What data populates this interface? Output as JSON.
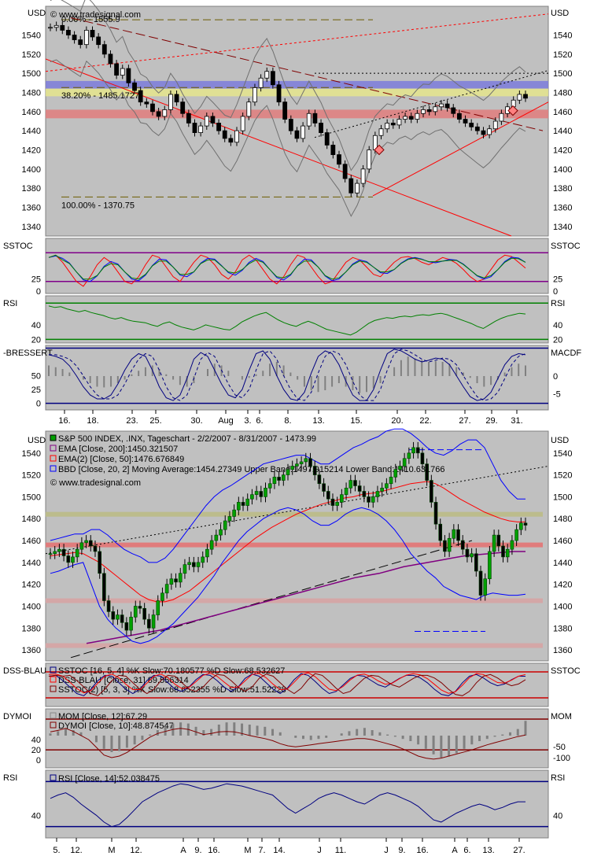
{
  "chart_data": [
    {
      "type": "line",
      "unit": "USD",
      "watermark": "© www.tradesignal.com",
      "ylim": [
        1330,
        1570
      ],
      "y_ticks": [
        1340,
        1360,
        1380,
        1400,
        1420,
        1440,
        1460,
        1480,
        1500,
        1520,
        1540
      ],
      "x_ticks": [
        "16.",
        "18.",
        "23.",
        "25.",
        "30.",
        "Aug",
        "3.",
        "6.",
        "8.",
        "13.",
        "15.",
        "20.",
        "22.",
        "27.",
        "29.",
        "31."
      ],
      "fib_levels": [
        {
          "label": "0.00% - 1555.9",
          "value": 1555.9
        },
        {
          "label": "38.20% - 1485.1727",
          "value": 1485.1727
        },
        {
          "label": "100.00% - 1370.75",
          "value": 1370.75
        }
      ],
      "zones": [
        {
          "color": "#7b7bdb",
          "from": 1484,
          "to": 1492
        },
        {
          "color": "#e5e58c",
          "from": 1476,
          "to": 1484
        },
        {
          "color": "#e07c7c",
          "from": 1453,
          "to": 1462
        }
      ],
      "close": [
        1548,
        1550,
        1545,
        1540,
        1535,
        1530,
        1545,
        1538,
        1530,
        1520,
        1510,
        1498,
        1505,
        1490,
        1482,
        1470,
        1468,
        1460,
        1455,
        1462,
        1478,
        1470,
        1458,
        1448,
        1438,
        1445,
        1455,
        1448,
        1440,
        1432,
        1428,
        1440,
        1455,
        1470,
        1485,
        1495,
        1502,
        1488,
        1470,
        1452,
        1440,
        1432,
        1445,
        1458,
        1448,
        1438,
        1425,
        1415,
        1405,
        1390,
        1375,
        1385,
        1400,
        1420,
        1435,
        1442,
        1448,
        1446,
        1452,
        1455,
        1452,
        1458,
        1462,
        1460,
        1465,
        1468,
        1464,
        1458,
        1452,
        1448,
        1444,
        1440,
        1436,
        1442,
        1450,
        1458,
        1465,
        1472,
        1478,
        1474
      ]
    },
    {
      "type": "line",
      "name": "SSTOC",
      "y_ticks": [
        0,
        25
      ],
      "levels": [
        20,
        80
      ],
      "k": [
        70,
        75,
        60,
        40,
        20,
        10,
        30,
        55,
        70,
        60,
        40,
        20,
        15,
        30,
        55,
        75,
        70,
        50,
        30,
        20,
        40,
        60,
        75,
        70,
        55,
        35,
        25,
        40,
        65,
        75,
        65,
        45,
        25,
        15,
        30,
        55,
        75,
        70,
        50,
        30,
        15,
        20,
        40,
        60,
        70,
        65,
        50,
        35,
        30,
        45,
        60,
        70,
        72,
        68,
        60,
        55,
        62,
        70,
        66,
        58,
        45,
        30,
        20,
        25,
        45,
        65,
        75,
        72,
        60,
        48
      ]
    },
    {
      "type": "line",
      "name": "RSI",
      "y_ticks": [
        20,
        40
      ],
      "levels": [
        20,
        70
      ],
      "values": [
        66,
        64,
        65,
        62,
        60,
        58,
        60,
        57,
        55,
        53,
        50,
        48,
        50,
        47,
        45,
        44,
        43,
        40,
        38,
        42,
        44,
        40,
        37,
        35,
        33,
        36,
        40,
        38,
        36,
        34,
        33,
        38,
        44,
        48,
        52,
        55,
        57,
        52,
        47,
        43,
        40,
        38,
        42,
        45,
        42,
        38,
        34,
        32,
        30,
        28,
        26,
        30,
        36,
        42,
        46,
        48,
        50,
        49,
        51,
        52,
        51,
        53,
        54,
        53,
        55,
        56,
        54,
        51,
        48,
        45,
        42,
        38,
        35,
        40,
        45,
        49,
        52,
        54,
        56,
        55
      ]
    },
    {
      "type": "line",
      "name": "-BRESSERT",
      "name_right": "MACDF",
      "y_ticks": [
        0,
        25,
        50
      ],
      "y_ticks_right": [
        0,
        -5
      ],
      "bressert": [
        88,
        85,
        80,
        68,
        50,
        30,
        15,
        8,
        8,
        15,
        35,
        60,
        80,
        90,
        85,
        60,
        30,
        10,
        5,
        15,
        45,
        80,
        92,
        85,
        60,
        35,
        15,
        10,
        25,
        60,
        90,
        95,
        80,
        50,
        25,
        8,
        5,
        20,
        55,
        85,
        95,
        90,
        70,
        40,
        15,
        5,
        5,
        25,
        60,
        90,
        98,
        95,
        88,
        80,
        75,
        78,
        82,
        80,
        70,
        50,
        30,
        12,
        5,
        8,
        20,
        45,
        70,
        85,
        90,
        88
      ],
      "macd_hist": [
        3,
        2.5,
        2,
        1,
        0,
        -1,
        -2,
        -3,
        -3.2,
        -3,
        -2,
        -1,
        0.5,
        1.5,
        2.5,
        3,
        2,
        0.5,
        -1,
        -2.5,
        -3,
        -2,
        0,
        2,
        3.5,
        3,
        1.5,
        0,
        -1,
        -0.5,
        0.5,
        1.5,
        3.5,
        4,
        3,
        1,
        -1,
        -3,
        -4,
        -4.5,
        -4,
        -3,
        -2,
        -3,
        -4,
        -4.8,
        -4.5,
        -3.5,
        -2,
        0,
        2.5,
        4.5,
        5.5,
        5,
        4.5,
        4,
        4.2,
        4,
        3.5,
        2.5,
        1,
        -0.5,
        -2,
        -3,
        -2.5,
        -1,
        1,
        2.5,
        3.5,
        3
      ]
    },
    {
      "type": "line",
      "unit": "USD",
      "watermark": "© www.tradesignal.com",
      "ylim": [
        1350,
        1560
      ],
      "y_ticks": [
        1360,
        1380,
        1400,
        1420,
        1440,
        1460,
        1480,
        1500,
        1520,
        1540
      ],
      "x_ticks": [
        "5.",
        "12.",
        "M",
        "12.",
        "A",
        "9.",
        "16.",
        "M",
        "7.",
        "14.",
        "J",
        "11.",
        "J",
        "9.",
        "16.",
        "A",
        "6.",
        "13.",
        "27."
      ],
      "legend": [
        {
          "text": "S&P 500 INDEX, .INX, Tageschart - 2/2/2007 - 8/31/2007 - 1473.99",
          "color": "#000000"
        },
        {
          "text": "EMA [Close, 200]:1450.321507",
          "color": "#800080"
        },
        {
          "text": "EMA(2) [Close, 50]:1476.676849",
          "color": "#ff0000"
        },
        {
          "text": "BBD [Close, 20, 2] Moving Average:1454.27349 Upper Band:1497.915214 Lower Band:1410.631766",
          "color": "#0000ff"
        }
      ],
      "zones": [
        {
          "color": "#e07c7c",
          "value": 1456
        },
        {
          "color": "#d4a7a7",
          "value": 1405
        },
        {
          "color": "#d4a7a7",
          "value": 1364
        },
        {
          "color": "#bcbc8c",
          "value": 1484
        }
      ],
      "close": [
        1448,
        1450,
        1452,
        1446,
        1440,
        1445,
        1452,
        1458,
        1460,
        1455,
        1450,
        1430,
        1405,
        1395,
        1388,
        1392,
        1385,
        1378,
        1390,
        1400,
        1398,
        1388,
        1380,
        1392,
        1405,
        1412,
        1420,
        1425,
        1422,
        1430,
        1438,
        1440,
        1436,
        1440,
        1445,
        1452,
        1460,
        1465,
        1470,
        1478,
        1482,
        1488,
        1495,
        1492,
        1498,
        1502,
        1505,
        1500,
        1508,
        1512,
        1518,
        1515,
        1520,
        1525,
        1528,
        1530,
        1532,
        1535,
        1528,
        1520,
        1512,
        1505,
        1498,
        1492,
        1495,
        1502,
        1508,
        1515,
        1510,
        1505,
        1500,
        1495,
        1500,
        1505,
        1508,
        1512,
        1518,
        1525,
        1528,
        1535,
        1540,
        1545,
        1540,
        1530,
        1515,
        1495,
        1475,
        1460,
        1450,
        1462,
        1470,
        1460,
        1452,
        1445,
        1448,
        1432,
        1410,
        1425,
        1450,
        1465,
        1455,
        1445,
        1452,
        1460,
        1470,
        1476,
        1474
      ],
      "ema200": [
        1366,
        1368,
        1370,
        1372,
        1374,
        1376,
        1378,
        1381,
        1384,
        1387,
        1390,
        1393,
        1396,
        1399,
        1402,
        1405,
        1408,
        1411,
        1414,
        1417,
        1420,
        1423,
        1426,
        1428,
        1430,
        1433,
        1436,
        1438,
        1440,
        1442,
        1444,
        1446,
        1447,
        1448,
        1449,
        1450,
        1450
      ],
      "ema50": [
        1446,
        1447,
        1448,
        1449,
        1448,
        1444,
        1440,
        1434,
        1428,
        1422,
        1416,
        1410,
        1406,
        1404,
        1404,
        1406,
        1410,
        1414,
        1420,
        1426,
        1432,
        1438,
        1444,
        1450,
        1456,
        1462,
        1467,
        1472,
        1476,
        1480,
        1484,
        1487,
        1490,
        1493,
        1495,
        1497,
        1499,
        1500,
        1502,
        1503,
        1504,
        1506,
        1508,
        1510,
        1512,
        1513,
        1514,
        1512,
        1508,
        1503,
        1498,
        1494,
        1490,
        1486,
        1483,
        1480,
        1478,
        1477,
        1477
      ],
      "bb_upper": [
        1460,
        1462,
        1464,
        1466,
        1466,
        1470,
        1470,
        1465,
        1458,
        1452,
        1448,
        1445,
        1440,
        1440,
        1444,
        1452,
        1462,
        1472,
        1482,
        1492,
        1500,
        1506,
        1510,
        1515,
        1520,
        1525,
        1530,
        1532,
        1534,
        1536,
        1538,
        1538,
        1534,
        1530,
        1530,
        1535,
        1540,
        1545,
        1548,
        1552,
        1555,
        1560,
        1562,
        1562,
        1558,
        1552,
        1545,
        1540,
        1538,
        1542,
        1548,
        1552,
        1552,
        1545,
        1530,
        1515,
        1505,
        1498,
        1498
      ],
      "bb_lower": [
        1430,
        1432,
        1435,
        1438,
        1440,
        1420,
        1400,
        1388,
        1380,
        1374,
        1368,
        1366,
        1368,
        1372,
        1378,
        1384,
        1392,
        1400,
        1408,
        1418,
        1428,
        1440,
        1450,
        1460,
        1468,
        1474,
        1480,
        1484,
        1488,
        1490,
        1488,
        1484,
        1478,
        1474,
        1474,
        1478,
        1484,
        1488,
        1490,
        1488,
        1484,
        1478,
        1470,
        1460,
        1448,
        1440,
        1432,
        1426,
        1418,
        1414,
        1410,
        1408,
        1406,
        1410,
        1412,
        1411,
        1410,
        1410,
        1411
      ]
    },
    {
      "type": "line",
      "name": "DSS-BLAU",
      "name_right": "SSTOC",
      "legend": [
        {
          "text": "SSTOC [16, 5, 4] %K Slow:70.180577 %D Slow:68.532627",
          "color": "#000080"
        },
        {
          "text": "DSS-BLAU [Close, 31] 89.556314",
          "color": "#ff0000"
        },
        {
          "text": "SSTOC(2) [5, 3, 3] %K Slow:68.652355 %D Slow:51.52228",
          "color": "#800000"
        }
      ],
      "levels": [
        20,
        80
      ],
      "k": [
        70,
        72,
        60,
        45,
        30,
        25,
        40,
        60,
        72,
        70,
        55,
        40,
        30,
        40,
        60,
        72,
        70,
        55,
        40,
        35,
        45,
        62,
        74,
        72,
        60,
        45,
        35,
        45,
        65,
        75,
        70,
        55,
        40,
        30,
        42,
        62,
        76,
        72,
        58,
        42,
        30,
        35,
        50,
        65,
        72,
        70,
        60,
        50,
        45,
        55,
        65,
        72,
        72,
        66,
        55,
        40,
        28,
        25,
        35,
        55,
        70,
        74,
        66,
        55,
        48,
        52,
        62,
        70,
        70
      ]
    },
    {
      "type": "bar",
      "name": "DYMOI",
      "name_right": "MOM",
      "legend": [
        {
          "text": "MOM [Close, 12]:67.29",
          "color": "#888888"
        },
        {
          "text": "DYMOI [Close, 10]:48.874547",
          "color": "#800000"
        }
      ],
      "y_ticks": [
        0,
        20,
        40
      ],
      "y_ticks_right": [
        -50,
        -100
      ],
      "mom": [
        10,
        20,
        30,
        25,
        15,
        0,
        -30,
        -60,
        -75,
        -70,
        -55,
        -40,
        -20,
        5,
        25,
        40,
        55,
        60,
        55,
        40,
        25,
        30,
        50,
        60,
        60,
        55,
        50,
        45,
        40,
        30,
        15,
        0,
        -10,
        -15,
        -20,
        -15,
        -10,
        0,
        10,
        20,
        30,
        35,
        25,
        15,
        5,
        -5,
        -15,
        -25,
        -40,
        -60,
        -85,
        -100,
        -95,
        -80,
        -60,
        -40,
        -25,
        -15,
        -5,
        5,
        15,
        30,
        67
      ],
      "dymoi": [
        55,
        58,
        62,
        56,
        48,
        40,
        25,
        10,
        5,
        8,
        15,
        25,
        35,
        45,
        52,
        56,
        60,
        62,
        60,
        55,
        50,
        52,
        55,
        56,
        55,
        52,
        48,
        45,
        42,
        38,
        32,
        28,
        26,
        28,
        30,
        32,
        34,
        36,
        38,
        40,
        42,
        42,
        40,
        36,
        32,
        28,
        22,
        15,
        8,
        4,
        2,
        4,
        8,
        12,
        16,
        20,
        25,
        30,
        34,
        38,
        42,
        46,
        49
      ]
    },
    {
      "type": "line",
      "name": "RSI",
      "legend": [
        {
          "text": "RSI [Close, 14]:52.038475",
          "color": "#000080"
        }
      ],
      "y_ticks": [
        40
      ],
      "levels": [
        30,
        70
      ],
      "values": [
        55,
        58,
        60,
        56,
        50,
        45,
        40,
        34,
        30,
        32,
        38,
        45,
        52,
        56,
        60,
        63,
        66,
        68,
        67,
        65,
        63,
        64,
        66,
        68,
        67,
        66,
        64,
        62,
        60,
        58,
        52,
        46,
        42,
        46,
        50,
        55,
        58,
        60,
        58,
        55,
        52,
        50,
        54,
        58,
        60,
        58,
        55,
        52,
        48,
        42,
        36,
        34,
        38,
        42,
        45,
        48,
        50,
        48,
        45,
        47,
        50,
        52,
        52
      ]
    }
  ]
}
